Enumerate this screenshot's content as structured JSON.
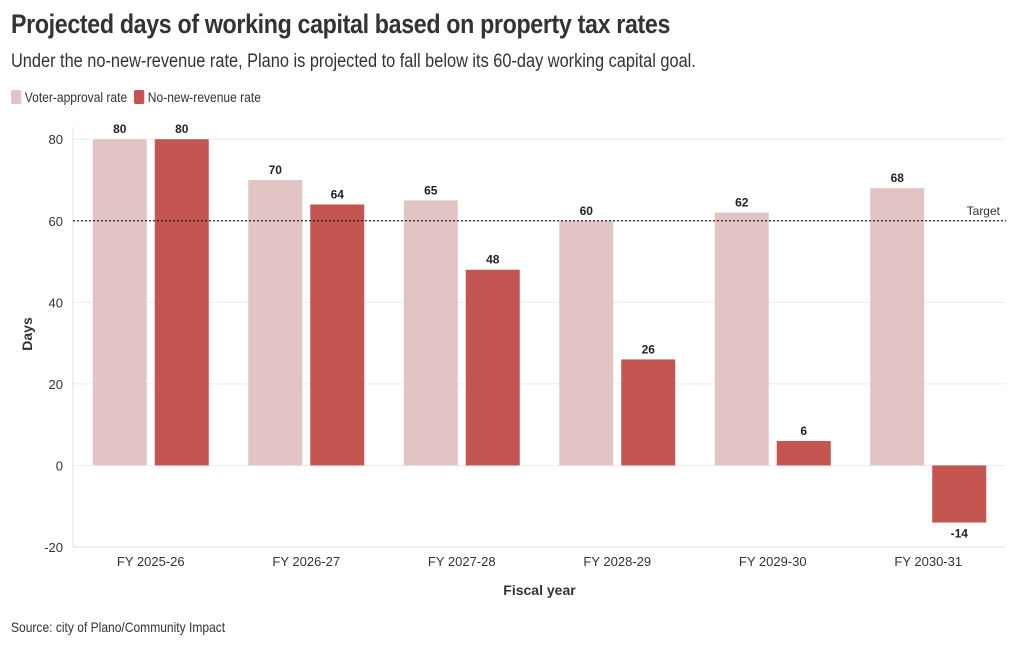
{
  "header": {
    "title": "Projected days of working capital based on property tax rates",
    "subtitle": "Under the no-new-revenue rate, Plano is projected to fall below its 60-day working capital goal."
  },
  "legend": {
    "items": [
      {
        "label": "Voter-approval rate",
        "color": "#e3c4c4"
      },
      {
        "label": "No-new-revenue rate",
        "color": "#c45550"
      }
    ]
  },
  "footer": {
    "source": "Source: city of Plano/Community Impact"
  },
  "chart_data": {
    "type": "bar",
    "title": "Projected days of working capital based on property tax rates",
    "xlabel": "Fiscal year",
    "ylabel": "Days",
    "ylim": [
      -20,
      83
    ],
    "yticks": [
      -20,
      0,
      20,
      40,
      60,
      80
    ],
    "grid": true,
    "categories": [
      "FY 2025-26",
      "FY 2026-27",
      "FY 2027-28",
      "FY 2028-29",
      "FY 2029-30",
      "FY 2030-31"
    ],
    "series": [
      {
        "name": "Voter-approval rate",
        "color": "#e3c4c4",
        "values": [
          80,
          70,
          65,
          60,
          62,
          68
        ]
      },
      {
        "name": "No-new-revenue rate",
        "color": "#c45550",
        "values": [
          80,
          64,
          48,
          26,
          6,
          -14
        ]
      }
    ],
    "reference_line": {
      "value": 60,
      "label": "Target"
    }
  }
}
